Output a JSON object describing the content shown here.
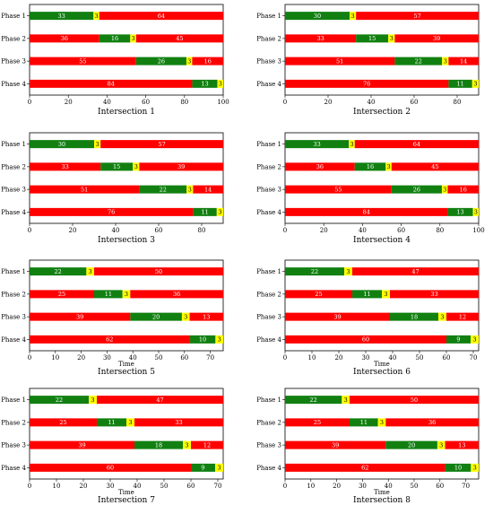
{
  "colors": {
    "green": "#118011",
    "yellow": "#ffff00",
    "red": "#ff0000",
    "green_text": "#ffffff",
    "yellow_text": "#000000",
    "red_text": "#ffffff"
  },
  "chart_data": [
    {
      "type": "bar",
      "title": "Intersection 1",
      "xlabel": "",
      "categories": [
        "Phase 1",
        "Phase 2",
        "Phase 3",
        "Phase 4"
      ],
      "series": [
        {
          "values": [
            [
              0,
              33,
              "green"
            ],
            [
              33,
              3,
              "yellow"
            ],
            [
              36,
              64,
              "red"
            ]
          ]
        },
        {
          "values": [
            [
              0,
              36,
              "red"
            ],
            [
              36,
              16,
              "green"
            ],
            [
              52,
              3,
              "yellow"
            ],
            [
              55,
              45,
              "red"
            ]
          ]
        },
        {
          "values": [
            [
              0,
              55,
              "red"
            ],
            [
              55,
              26,
              "green"
            ],
            [
              81,
              3,
              "yellow"
            ],
            [
              84,
              16,
              "red"
            ]
          ]
        },
        {
          "values": [
            [
              0,
              84,
              "red"
            ],
            [
              84,
              13,
              "green"
            ],
            [
              97,
              3,
              "yellow"
            ]
          ]
        }
      ],
      "xlim": [
        0,
        100
      ],
      "xticks": [
        0,
        20,
        40,
        60,
        80,
        100
      ]
    },
    {
      "type": "bar",
      "title": "Intersection 2",
      "xlabel": "",
      "categories": [
        "Phase 1",
        "Phase 2",
        "Phase 3",
        "Phase 4"
      ],
      "series": [
        {
          "values": [
            [
              0,
              30,
              "green"
            ],
            [
              30,
              3,
              "yellow"
            ],
            [
              33,
              57,
              "red"
            ]
          ]
        },
        {
          "values": [
            [
              0,
              33,
              "red"
            ],
            [
              33,
              15,
              "green"
            ],
            [
              48,
              3,
              "yellow"
            ],
            [
              51,
              39,
              "red"
            ]
          ]
        },
        {
          "values": [
            [
              0,
              51,
              "red"
            ],
            [
              51,
              22,
              "green"
            ],
            [
              73,
              3,
              "yellow"
            ],
            [
              76,
              14,
              "red"
            ]
          ]
        },
        {
          "values": [
            [
              0,
              76,
              "red"
            ],
            [
              76,
              11,
              "green"
            ],
            [
              87,
              3,
              "yellow"
            ]
          ]
        }
      ],
      "xlim": [
        0,
        90
      ],
      "xticks": [
        0,
        20,
        40,
        60,
        80
      ]
    },
    {
      "type": "bar",
      "title": "Intersection 3",
      "xlabel": "",
      "categories": [
        "Phase 1",
        "Phase 2",
        "Phase 3",
        "Phase 4"
      ],
      "series": [
        {
          "values": [
            [
              0,
              30,
              "green"
            ],
            [
              30,
              3,
              "yellow"
            ],
            [
              33,
              57,
              "red"
            ]
          ]
        },
        {
          "values": [
            [
              0,
              33,
              "red"
            ],
            [
              33,
              15,
              "green"
            ],
            [
              48,
              3,
              "yellow"
            ],
            [
              51,
              39,
              "red"
            ]
          ]
        },
        {
          "values": [
            [
              0,
              51,
              "red"
            ],
            [
              51,
              22,
              "green"
            ],
            [
              73,
              3,
              "yellow"
            ],
            [
              76,
              14,
              "red"
            ]
          ]
        },
        {
          "values": [
            [
              0,
              76,
              "red"
            ],
            [
              76,
              11,
              "green"
            ],
            [
              87,
              3,
              "yellow"
            ]
          ]
        }
      ],
      "xlim": [
        0,
        90
      ],
      "xticks": [
        0,
        20,
        40,
        60,
        80
      ]
    },
    {
      "type": "bar",
      "title": "Intersection 4",
      "xlabel": "",
      "categories": [
        "Phase 1",
        "Phase 2",
        "Phase 3",
        "Phase 4"
      ],
      "series": [
        {
          "values": [
            [
              0,
              33,
              "green"
            ],
            [
              33,
              3,
              "yellow"
            ],
            [
              36,
              64,
              "red"
            ]
          ]
        },
        {
          "values": [
            [
              0,
              36,
              "red"
            ],
            [
              36,
              16,
              "green"
            ],
            [
              52,
              3,
              "yellow"
            ],
            [
              55,
              45,
              "red"
            ]
          ]
        },
        {
          "values": [
            [
              0,
              55,
              "red"
            ],
            [
              55,
              26,
              "green"
            ],
            [
              81,
              3,
              "yellow"
            ],
            [
              84,
              16,
              "red"
            ]
          ]
        },
        {
          "values": [
            [
              0,
              84,
              "red"
            ],
            [
              84,
              13,
              "green"
            ],
            [
              97,
              3,
              "yellow"
            ]
          ]
        }
      ],
      "xlim": [
        0,
        100
      ],
      "xticks": [
        0,
        20,
        40,
        60,
        80,
        100
      ]
    },
    {
      "type": "bar",
      "title": "Intersection 5",
      "xlabel": "Time",
      "categories": [
        "Phase 1",
        "Phase 2",
        "Phase 3",
        "Phase 4"
      ],
      "series": [
        {
          "values": [
            [
              0,
              22,
              "green"
            ],
            [
              22,
              3,
              "yellow"
            ],
            [
              25,
              50,
              "red"
            ]
          ]
        },
        {
          "values": [
            [
              0,
              25,
              "red"
            ],
            [
              25,
              11,
              "green"
            ],
            [
              36,
              3,
              "yellow"
            ],
            [
              39,
              36,
              "red"
            ]
          ]
        },
        {
          "values": [
            [
              0,
              39,
              "red"
            ],
            [
              39,
              20,
              "green"
            ],
            [
              59,
              3,
              "yellow"
            ],
            [
              62,
              13,
              "red"
            ]
          ]
        },
        {
          "values": [
            [
              0,
              62,
              "red"
            ],
            [
              62,
              10,
              "green"
            ],
            [
              72,
              3,
              "yellow"
            ]
          ]
        }
      ],
      "xlim": [
        0,
        75
      ],
      "xticks": [
        0,
        10,
        20,
        30,
        40,
        50,
        60,
        70
      ]
    },
    {
      "type": "bar",
      "title": "Intersection 6",
      "xlabel": "Time",
      "categories": [
        "Phase 1",
        "Phase 2",
        "Phase 3",
        "Phase 4"
      ],
      "series": [
        {
          "values": [
            [
              0,
              22,
              "green"
            ],
            [
              22,
              3,
              "yellow"
            ],
            [
              25,
              47,
              "red"
            ]
          ]
        },
        {
          "values": [
            [
              0,
              25,
              "red"
            ],
            [
              25,
              11,
              "green"
            ],
            [
              36,
              3,
              "yellow"
            ],
            [
              39,
              33,
              "red"
            ]
          ]
        },
        {
          "values": [
            [
              0,
              39,
              "red"
            ],
            [
              39,
              18,
              "green"
            ],
            [
              57,
              3,
              "yellow"
            ],
            [
              60,
              12,
              "red"
            ]
          ]
        },
        {
          "values": [
            [
              0,
              60,
              "red"
            ],
            [
              60,
              9,
              "green"
            ],
            [
              69,
              3,
              "yellow"
            ]
          ]
        }
      ],
      "xlim": [
        0,
        72
      ],
      "xticks": [
        0,
        10,
        20,
        30,
        40,
        50,
        60,
        70
      ]
    },
    {
      "type": "bar",
      "title": "Intersection 7",
      "xlabel": "Time",
      "categories": [
        "Phase 1",
        "Phase 2",
        "Phase 3",
        "Phase 4"
      ],
      "series": [
        {
          "values": [
            [
              0,
              22,
              "green"
            ],
            [
              22,
              3,
              "yellow"
            ],
            [
              25,
              47,
              "red"
            ]
          ]
        },
        {
          "values": [
            [
              0,
              25,
              "red"
            ],
            [
              25,
              11,
              "green"
            ],
            [
              36,
              3,
              "yellow"
            ],
            [
              39,
              33,
              "red"
            ]
          ]
        },
        {
          "values": [
            [
              0,
              39,
              "red"
            ],
            [
              39,
              18,
              "green"
            ],
            [
              57,
              3,
              "yellow"
            ],
            [
              60,
              12,
              "red"
            ]
          ]
        },
        {
          "values": [
            [
              0,
              60,
              "red"
            ],
            [
              60,
              9,
              "green"
            ],
            [
              69,
              3,
              "yellow"
            ]
          ]
        }
      ],
      "xlim": [
        0,
        72
      ],
      "xticks": [
        0,
        10,
        20,
        30,
        40,
        50,
        60,
        70
      ]
    },
    {
      "type": "bar",
      "title": "Intersection 8",
      "xlabel": "Time",
      "categories": [
        "Phase 1",
        "Phase 2",
        "Phase 3",
        "Phase 4"
      ],
      "series": [
        {
          "values": [
            [
              0,
              22,
              "green"
            ],
            [
              22,
              3,
              "yellow"
            ],
            [
              25,
              50,
              "red"
            ]
          ]
        },
        {
          "values": [
            [
              0,
              25,
              "red"
            ],
            [
              25,
              11,
              "green"
            ],
            [
              36,
              3,
              "yellow"
            ],
            [
              39,
              36,
              "red"
            ]
          ]
        },
        {
          "values": [
            [
              0,
              39,
              "red"
            ],
            [
              39,
              20,
              "green"
            ],
            [
              59,
              3,
              "yellow"
            ],
            [
              62,
              13,
              "red"
            ]
          ]
        },
        {
          "values": [
            [
              0,
              62,
              "red"
            ],
            [
              62,
              10,
              "green"
            ],
            [
              72,
              3,
              "yellow"
            ]
          ]
        }
      ],
      "xlim": [
        0,
        75
      ],
      "xticks": [
        0,
        10,
        20,
        30,
        40,
        50,
        60,
        70
      ]
    }
  ]
}
